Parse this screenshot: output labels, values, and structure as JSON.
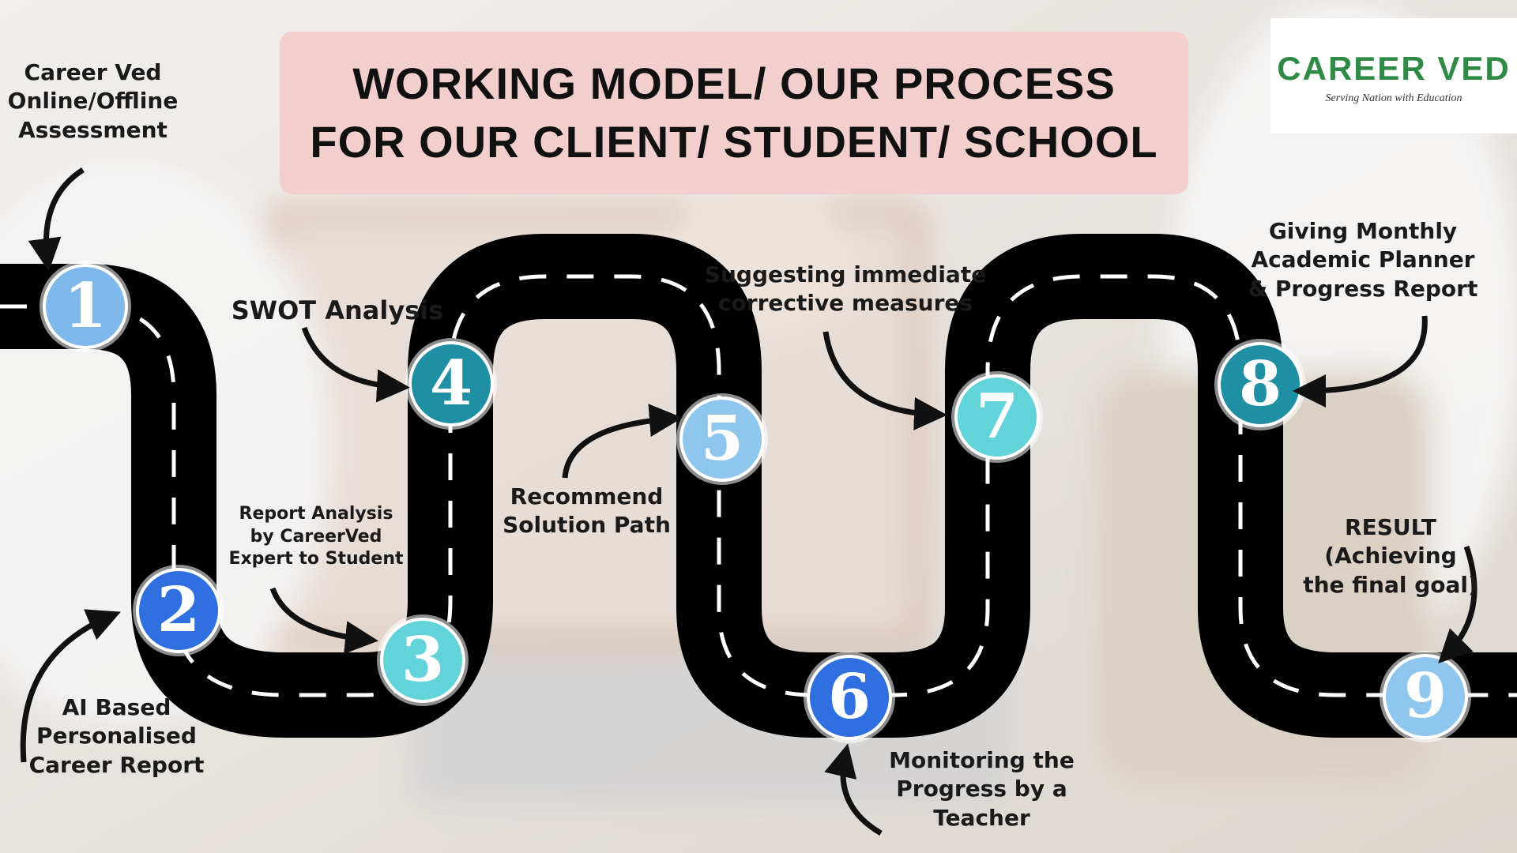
{
  "title": {
    "line1": "WORKING MODEL/ OUR PROCESS",
    "line2": "FOR OUR CLIENT/ STUDENT/ SCHOOL"
  },
  "logo": {
    "name": "CAREER VED",
    "tagline": "Serving Nation with Education"
  },
  "steps": [
    {
      "number": "1",
      "label": "Career Ved Online/Offline Assessment",
      "color": "#7fb8ea"
    },
    {
      "number": "2",
      "label": "AI Based Personalised Career Report",
      "color": "#2f6fe0"
    },
    {
      "number": "3",
      "label": "Report Analysis by CareerVed Expert to Student",
      "color": "#62d3d9"
    },
    {
      "number": "4",
      "label": "SWOT Analysis",
      "color": "#1f8fa3"
    },
    {
      "number": "5",
      "label": "Recommend Solution Path",
      "color": "#8ec6ee"
    },
    {
      "number": "6",
      "label": "Monitoring the Progress by a Teacher",
      "color": "#2f6fe0"
    },
    {
      "number": "7",
      "label": "Suggesting immediate corrective measures",
      "color": "#62d3d9"
    },
    {
      "number": "8",
      "label": "Giving  Monthly Academic Planner & Progress Report",
      "color": "#1f8fa3"
    },
    {
      "number": "9",
      "label": "RESULT (Achieving the final goal)",
      "color": "#8ec6ee"
    }
  ],
  "labels": {
    "l1": [
      "Career Ved",
      "Online/Offline",
      "Assessment"
    ],
    "l2": [
      "AI Based",
      "Personalised",
      "Career Report"
    ],
    "l3": [
      "Report Analysis",
      "by CareerVed",
      "Expert to Student"
    ],
    "l4": [
      "SWOT Analysis"
    ],
    "l5": [
      "Recommend",
      "Solution Path"
    ],
    "l6": [
      "Monitoring the",
      "Progress by a",
      "Teacher"
    ],
    "l7": [
      "Suggesting immediate",
      "corrective measures"
    ],
    "l8": [
      "Giving  Monthly",
      "Academic Planner",
      "& Progress Report"
    ],
    "l9": [
      "RESULT",
      "(Achieving",
      "the final goal)"
    ]
  }
}
